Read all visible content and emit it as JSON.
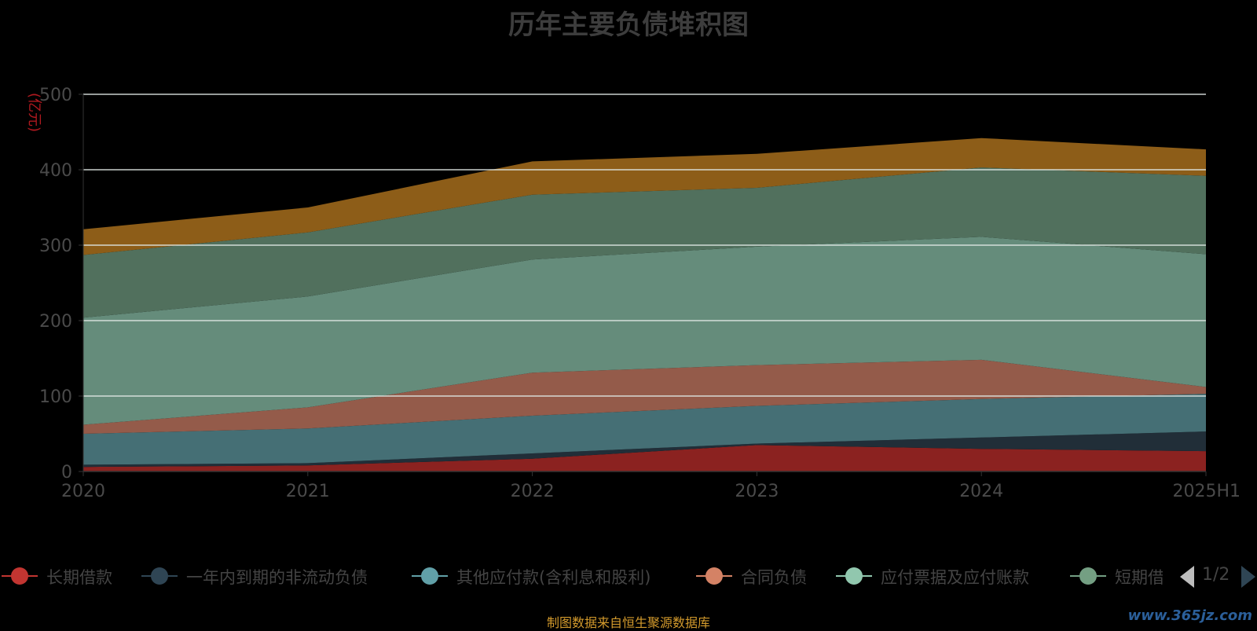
{
  "chart_data": {
    "type": "area",
    "stacked": true,
    "title": "历年主要负债堆积图",
    "ylabel": "(亿元)",
    "ylim": [
      0,
      500
    ],
    "yticks": [
      0,
      100,
      200,
      300,
      400,
      500
    ],
    "categories": [
      "2020",
      "2021",
      "2022",
      "2023",
      "2024",
      "2025H1"
    ],
    "grid": true,
    "legend_position": "bottom",
    "series": [
      {
        "name": "长期借款",
        "values": [
          6,
          8,
          17,
          35,
          30,
          27
        ],
        "color": "#c23531",
        "fill": "#8b2220"
      },
      {
        "name": "一年内到期的非流动负债",
        "values": [
          3,
          3,
          7,
          2,
          15,
          26
        ],
        "color": "#2f4554",
        "fill": "#212e38"
      },
      {
        "name": "其他应付款(含利息和股利)",
        "values": [
          41,
          46,
          50,
          50,
          51,
          50
        ],
        "color": "#61a0a8",
        "fill": "#456f75"
      },
      {
        "name": "合同负债",
        "values": [
          12,
          28,
          57,
          54,
          52,
          9
        ],
        "color": "#d48265",
        "fill": "#945b4a"
      },
      {
        "name": "应付票据及应付账款",
        "values": [
          142,
          147,
          150,
          157,
          163,
          176
        ],
        "color": "#91c7ae",
        "fill": "#658c7b"
      },
      {
        "name": "短期借款",
        "values": [
          83,
          85,
          86,
          78,
          92,
          104
        ],
        "color": "#749f83",
        "fill": "#51705d"
      },
      {
        "name": "",
        "values": [
          34,
          33,
          44,
          45,
          39,
          35
        ],
        "color": "#ca8622",
        "fill": "#8d5d18"
      }
    ],
    "legend_visible_count": 6,
    "pager": "1/2"
  },
  "source_note": "制图数据来自恒生聚源数据库",
  "watermark": "www.365jz.com"
}
